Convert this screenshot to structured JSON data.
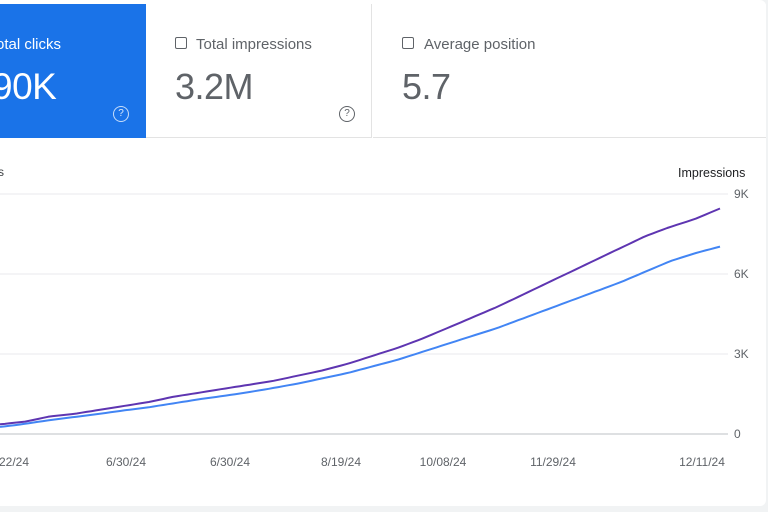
{
  "cards": [
    {
      "label": "Total clicks",
      "display_label": "otal clicks",
      "value": "90K",
      "active": true
    },
    {
      "label": "Total impressions",
      "value": "3.2M",
      "active": false
    },
    {
      "label": "Average position",
      "value": "5.7",
      "active": false
    }
  ],
  "help_glyph": "?",
  "chart_data": {
    "type": "line",
    "left_axis_label": "s",
    "right_axis_label": "Impressions",
    "y_right_ticks": [
      "0",
      "3K",
      "6K",
      "9K"
    ],
    "y_range": [
      0,
      9000
    ],
    "x_ticks": [
      "22/24",
      "6/30/24",
      "6/30/24",
      "8/19/24",
      "10/08/24",
      "11/29/24",
      "12/11/24"
    ],
    "grid": true,
    "series": [
      {
        "name": "",
        "color": "#5e35b1",
        "values": [
          400,
          500,
          700,
          800,
          950,
          1100,
          1250,
          1450,
          1600,
          1750,
          1900,
          2050,
          2250,
          2450,
          2700,
          3000,
          3300,
          3650,
          4050,
          4450,
          4850,
          5300,
          5750,
          6200,
          6650,
          7100,
          7550,
          7900,
          8200,
          8600
        ]
      },
      {
        "name": "",
        "color": "#4285f4",
        "values": [
          300,
          420,
          560,
          680,
          800,
          930,
          1050,
          1200,
          1350,
          1480,
          1620,
          1780,
          1950,
          2150,
          2350,
          2600,
          2850,
          3150,
          3450,
          3750,
          4050,
          4400,
          4750,
          5100,
          5450,
          5800,
          6200,
          6600,
          6900,
          7150
        ]
      }
    ]
  }
}
